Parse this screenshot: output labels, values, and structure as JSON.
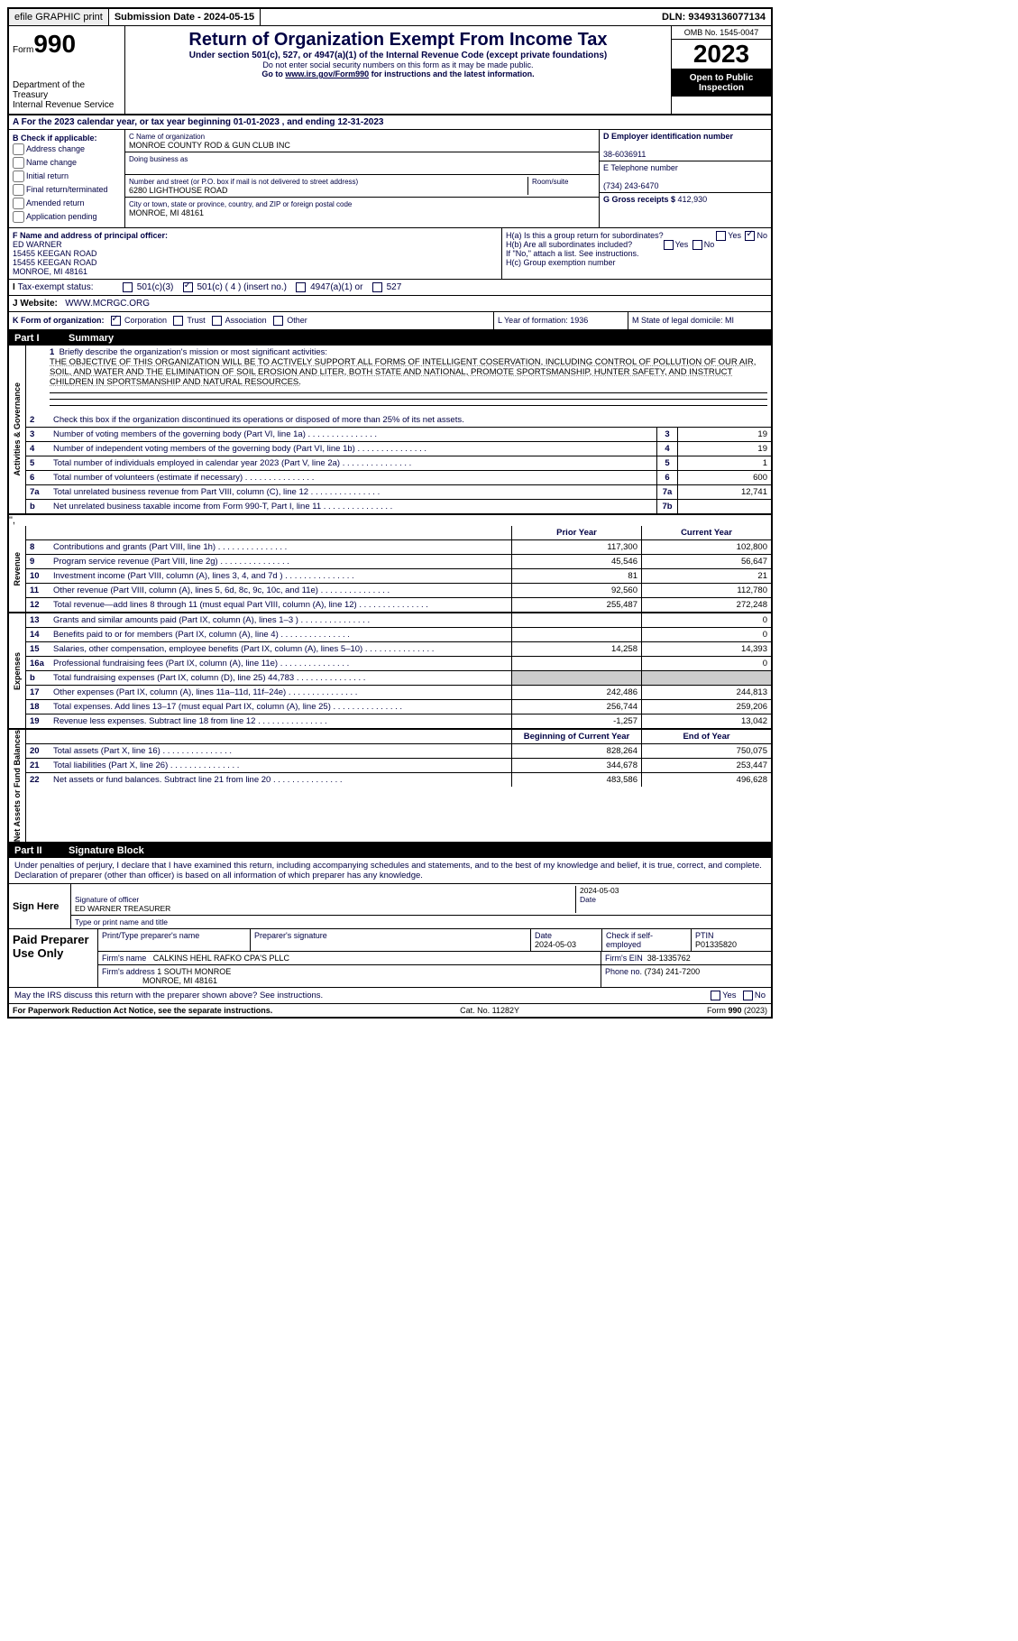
{
  "topbar": {
    "efile": "efile GRAPHIC print",
    "sub_label": "Submission Date - ",
    "sub_date": "2024-05-15",
    "dln_label": "DLN: ",
    "dln": "93493136077134"
  },
  "header": {
    "form_label": "Form",
    "form_no": "990",
    "dept": "Department of the Treasury\nInternal Revenue Service",
    "title": "Return of Organization Exempt From Income Tax",
    "sub": "Under section 501(c), 527, or 4947(a)(1) of the Internal Revenue Code (except private foundations)",
    "small1": "Do not enter social security numbers on this form as it may be made public.",
    "small2_pre": "Go to ",
    "small2_link": "www.irs.gov/Form990",
    "small2_post": " for instructions and the latest information.",
    "omb": "OMB No. 1545-0047",
    "year": "2023",
    "inspect": "Open to Public Inspection"
  },
  "lineA": "A For the 2023 calendar year, or tax year beginning 01-01-2023   , and ending 12-31-2023",
  "boxB": {
    "label": "B Check if applicable:",
    "opts": [
      "Address change",
      "Name change",
      "Initial return",
      "Final return/terminated",
      "Amended return",
      "Application pending"
    ]
  },
  "boxC": {
    "name_label": "C Name of organization",
    "name": "MONROE COUNTY ROD & GUN CLUB INC",
    "dba_label": "Doing business as",
    "street_label": "Number and street (or P.O. box if mail is not delivered to street address)",
    "room_label": "Room/suite",
    "street": "6280 LIGHTHOUSE ROAD",
    "city_label": "City or town, state or province, country, and ZIP or foreign postal code",
    "city": "MONROE, MI  48161"
  },
  "boxD": {
    "label": "D Employer identification number",
    "val": "38-6036911"
  },
  "boxE": {
    "label": "E Telephone number",
    "val": "(734) 243-6470"
  },
  "boxG": {
    "label": "G Gross receipts $ ",
    "val": "412,930"
  },
  "boxF": {
    "label": "F Name and address of principal officer:",
    "name": "ED WARNER",
    "l1": "15455 KEEGAN ROAD",
    "l2": "15455 KEEGAN ROAD",
    "l3": "MONROE, MI  48161"
  },
  "boxH": {
    "ha": "H(a)  Is this a group return for subordinates?",
    "hb": "H(b)  Are all subordinates included?",
    "hb2": "If \"No,\" attach a list. See instructions.",
    "hc": "H(c)  Group exemption number",
    "yes": "Yes",
    "no": "No"
  },
  "taxI": {
    "label": "Tax-exempt status:",
    "o1": "501(c)(3)",
    "o2": "501(c) ( 4 ) (insert no.)",
    "o3": "4947(a)(1) or",
    "o4": "527"
  },
  "website": {
    "label": "J   Website:",
    "val": "WWW.MCRGC.ORG"
  },
  "rowK": {
    "label": "K Form of organization:",
    "opts": [
      "Corporation",
      "Trust",
      "Association",
      "Other"
    ],
    "L": "L Year of formation: 1936",
    "M": "M State of legal domicile: MI"
  },
  "part1": {
    "pt": "Part I",
    "title": "Summary"
  },
  "mission": {
    "num": "1",
    "label": "Briefly describe the organization's mission or most significant activities:",
    "text": "THE OBJECTIVE OF THIS ORGANIZATION WILL BE TO ACTIVELY SUPPORT ALL FORMS OF INTELLIGENT COSERVATION, INCLUDING CONTROL OF POLLUTION OF OUR AIR, SOIL, AND WATER AND THE ELIMINATION OF SOIL EROSION AND LITER, BOTH STATE AND NATIONAL, PROMOTE SPORTSMANSHIP, HUNTER SAFETY, AND INSTRUCT CHILDREN IN SPORTSMANSHIP AND NATURAL RESOURCES."
  },
  "summary": {
    "l2": "Check this box      if the organization discontinued its operations or disposed of more than 25% of its net assets.",
    "gov": [
      {
        "n": "3",
        "d": "Number of voting members of the governing body (Part VI, line 1a)",
        "b": "3",
        "v": "19"
      },
      {
        "n": "4",
        "d": "Number of independent voting members of the governing body (Part VI, line 1b)",
        "b": "4",
        "v": "19"
      },
      {
        "n": "5",
        "d": "Total number of individuals employed in calendar year 2023 (Part V, line 2a)",
        "b": "5",
        "v": "1"
      },
      {
        "n": "6",
        "d": "Total number of volunteers (estimate if necessary)",
        "b": "6",
        "v": "600"
      },
      {
        "n": "7a",
        "d": "Total unrelated business revenue from Part VIII, column (C), line 12",
        "b": "7a",
        "v": "12,741"
      },
      {
        "n": "b",
        "d": "Net unrelated business taxable income from Form 990-T, Part I, line 11",
        "b": "7b",
        "v": ""
      }
    ],
    "hdr_prior": "Prior Year",
    "hdr_curr": "Current Year",
    "rev": [
      {
        "n": "8",
        "d": "Contributions and grants (Part VIII, line 1h)",
        "p": "117,300",
        "c": "102,800"
      },
      {
        "n": "9",
        "d": "Program service revenue (Part VIII, line 2g)",
        "p": "45,546",
        "c": "56,647"
      },
      {
        "n": "10",
        "d": "Investment income (Part VIII, column (A), lines 3, 4, and 7d )",
        "p": "81",
        "c": "21"
      },
      {
        "n": "11",
        "d": "Other revenue (Part VIII, column (A), lines 5, 6d, 8c, 9c, 10c, and 11e)",
        "p": "92,560",
        "c": "112,780"
      },
      {
        "n": "12",
        "d": "Total revenue—add lines 8 through 11 (must equal Part VIII, column (A), line 12)",
        "p": "255,487",
        "c": "272,248"
      }
    ],
    "exp": [
      {
        "n": "13",
        "d": "Grants and similar amounts paid (Part IX, column (A), lines 1–3 )",
        "p": "",
        "c": "0"
      },
      {
        "n": "14",
        "d": "Benefits paid to or for members (Part IX, column (A), line 4)",
        "p": "",
        "c": "0"
      },
      {
        "n": "15",
        "d": "Salaries, other compensation, employee benefits (Part IX, column (A), lines 5–10)",
        "p": "14,258",
        "c": "14,393"
      },
      {
        "n": "16a",
        "d": "Professional fundraising fees (Part IX, column (A), line 11e)",
        "p": "",
        "c": "0"
      },
      {
        "n": "b",
        "d": "Total fundraising expenses (Part IX, column (D), line 25) 44,783",
        "p": "shaded",
        "c": "shaded"
      },
      {
        "n": "17",
        "d": "Other expenses (Part IX, column (A), lines 11a–11d, 11f–24e)",
        "p": "242,486",
        "c": "244,813"
      },
      {
        "n": "18",
        "d": "Total expenses. Add lines 13–17 (must equal Part IX, column (A), line 25)",
        "p": "256,744",
        "c": "259,206"
      },
      {
        "n": "19",
        "d": "Revenue less expenses. Subtract line 18 from line 12",
        "p": "-1,257",
        "c": "13,042"
      }
    ],
    "hdr_beg": "Beginning of Current Year",
    "hdr_end": "End of Year",
    "net": [
      {
        "n": "20",
        "d": "Total assets (Part X, line 16)",
        "p": "828,264",
        "c": "750,075"
      },
      {
        "n": "21",
        "d": "Total liabilities (Part X, line 26)",
        "p": "344,678",
        "c": "253,447"
      },
      {
        "n": "22",
        "d": "Net assets or fund balances. Subtract line 21 from line 20",
        "p": "483,586",
        "c": "496,628"
      }
    ]
  },
  "vlabels": {
    "gov": "Activities & Governance",
    "rev": "Revenue",
    "exp": "Expenses",
    "net": "Net Assets or Fund Balances"
  },
  "part2": {
    "pt": "Part II",
    "title": "Signature Block"
  },
  "sig": {
    "decl": "Under penalties of perjury, I declare that I have examined this return, including accompanying schedules and statements, and to the best of my knowledge and belief, it is true, correct, and complete. Declaration of preparer (other than officer) is based on all information of which preparer has any knowledge.",
    "sign_here": "Sign Here",
    "sig_officer": "Signature of officer",
    "sig_name": "ED WARNER  TREASURER",
    "type_name": "Type or print name and title",
    "date_label": "Date",
    "date": "2024-05-03"
  },
  "prep": {
    "label": "Paid Preparer Use Only",
    "print": "Print/Type preparer's name",
    "sig": "Preparer's signature",
    "date_label": "Date",
    "date": "2024-05-03",
    "check": "Check       if self-employed",
    "ptin_label": "PTIN",
    "ptin": "P01335820",
    "firm_label": "Firm's name",
    "firm": "CALKINS HEHL RAFKO CPA'S PLLC",
    "ein_label": "Firm's EIN",
    "ein": "38-1335762",
    "addr_label": "Firm's address",
    "addr": "1 SOUTH MONROE",
    "addr2": "MONROE, MI  48161",
    "phone_label": "Phone no.",
    "phone": "(734) 241-7200"
  },
  "discuss": "May the IRS discuss this return with the preparer shown above? See instructions.",
  "footer": {
    "l": "For Paperwork Reduction Act Notice, see the separate instructions.",
    "m": "Cat. No. 11282Y",
    "r": "Form 990 (2023)"
  }
}
